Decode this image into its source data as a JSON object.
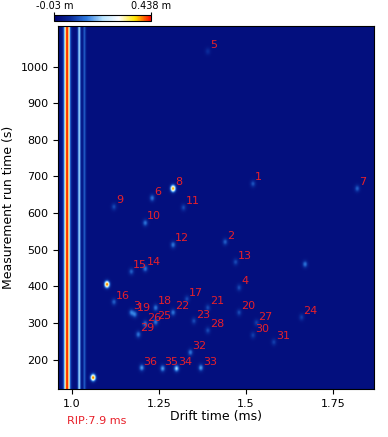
{
  "chart_data": {
    "type": "heatmap",
    "x_label": "Drift time (ms)",
    "y_label": "Measurement run time (s)",
    "xlim": [
      0.96,
      1.87
    ],
    "ylim": [
      120,
      1110
    ],
    "xticks": [
      {
        "value": 1.0,
        "label": "1.0"
      },
      1.25,
      1.5,
      1.75
    ],
    "yticks": [
      200,
      300,
      400,
      500,
      600,
      700,
      800,
      900,
      1000
    ],
    "colorbar": {
      "range": [
        -0.03,
        0.438
      ],
      "ticks": [
        {
          "value": -0.03,
          "label": "-0.03 m"
        },
        {
          "value": 0.438,
          "label": "0.438 m"
        }
      ]
    },
    "rip": {
      "label": "RIP:7.9 ms",
      "x": 0.985,
      "z": 0.438
    },
    "streaks": [
      {
        "x": 1.02,
        "z": 0.2
      },
      {
        "x": 1.035,
        "z": 0.1
      }
    ],
    "spots": [
      {
        "label": "1",
        "x": 1.52,
        "y": 680,
        "z": 0.09
      },
      {
        "label": "2",
        "x": 1.44,
        "y": 521,
        "z": 0.1
      },
      {
        "label": "3",
        "x": 1.17,
        "y": 328,
        "z": 0.12
      },
      {
        "label": "4",
        "x": 1.48,
        "y": 396,
        "z": 0.08
      },
      {
        "label": "5",
        "x": 1.39,
        "y": 1042,
        "z": 0.05
      },
      {
        "label": "6",
        "x": 1.23,
        "y": 641,
        "z": 0.12
      },
      {
        "label": "7",
        "x": 1.82,
        "y": 667,
        "z": 0.1
      },
      {
        "label": "8",
        "x": 1.29,
        "y": 667,
        "z": 0.4
      },
      {
        "label": "9",
        "x": 1.12,
        "y": 617,
        "z": 0.08
      },
      {
        "label": "10",
        "x": 1.21,
        "y": 573,
        "z": 0.12
      },
      {
        "label": "11",
        "x": 1.32,
        "y": 615,
        "z": 0.08
      },
      {
        "label": "12",
        "x": 1.29,
        "y": 513,
        "z": 0.12
      },
      {
        "label": "13",
        "x": 1.47,
        "y": 466,
        "z": 0.08
      },
      {
        "label": "14",
        "x": 1.21,
        "y": 448,
        "z": 0.12
      },
      {
        "label": "15",
        "x": 1.17,
        "y": 440,
        "z": 0.1
      },
      {
        "label": "16",
        "x": 1.12,
        "y": 357,
        "z": 0.1
      },
      {
        "label": "17",
        "x": 1.33,
        "y": 365,
        "z": 0.08
      },
      {
        "label": "18",
        "x": 1.24,
        "y": 341,
        "z": 0.12
      },
      {
        "label": "19",
        "x": 1.18,
        "y": 323,
        "z": 0.12
      },
      {
        "label": "20",
        "x": 1.48,
        "y": 328,
        "z": 0.08
      },
      {
        "label": "21",
        "x": 1.39,
        "y": 341,
        "z": 0.08
      },
      {
        "label": "22",
        "x": 1.29,
        "y": 328,
        "z": 0.12
      },
      {
        "label": "23",
        "x": 1.35,
        "y": 305,
        "z": 0.08
      },
      {
        "label": "24",
        "x": 1.66,
        "y": 315,
        "z": 0.07
      },
      {
        "label": "25",
        "x": 1.24,
        "y": 302,
        "z": 0.12
      },
      {
        "label": "26",
        "x": 1.21,
        "y": 297,
        "z": 0.12
      },
      {
        "label": "27",
        "x": 1.53,
        "y": 300,
        "z": 0.07
      },
      {
        "label": "28",
        "x": 1.39,
        "y": 279,
        "z": 0.08
      },
      {
        "label": "29",
        "x": 1.19,
        "y": 268,
        "z": 0.12
      },
      {
        "label": "30",
        "x": 1.52,
        "y": 266,
        "z": 0.07
      },
      {
        "label": "31",
        "x": 1.58,
        "y": 247,
        "z": 0.07
      },
      {
        "label": "32",
        "x": 1.34,
        "y": 219,
        "z": 0.12
      },
      {
        "label": "33",
        "x": 1.37,
        "y": 177,
        "z": 0.15
      },
      {
        "label": "34",
        "x": 1.3,
        "y": 175,
        "z": 0.2
      },
      {
        "label": "35",
        "x": 1.26,
        "y": 175,
        "z": 0.15
      },
      {
        "label": "36",
        "x": 1.2,
        "y": 177,
        "z": 0.15
      },
      {
        "label": null,
        "x": 1.1,
        "y": 405,
        "z": 0.42
      },
      {
        "label": null,
        "x": 1.06,
        "y": 150,
        "z": 0.42
      },
      {
        "label": null,
        "x": 1.67,
        "y": 460,
        "z": 0.12
      }
    ]
  }
}
